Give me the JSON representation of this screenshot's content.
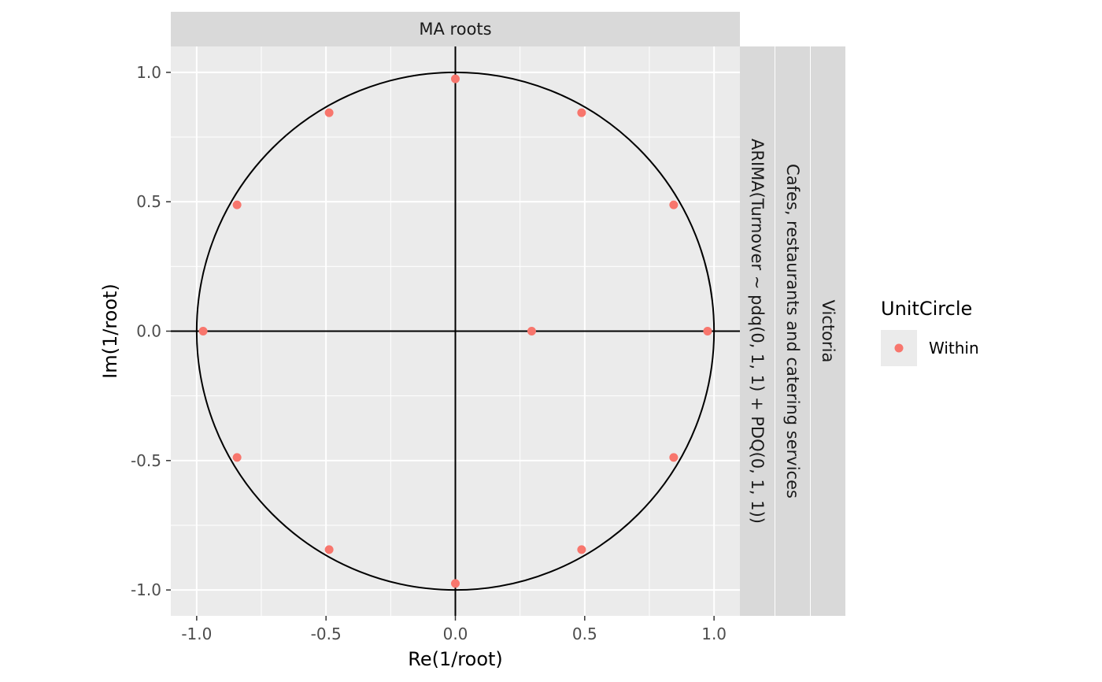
{
  "chart_data": {
    "type": "scatter",
    "facet_title": "MA roots",
    "row_strips": [
      "ARIMA(Turnover ~ pdq(0, 1, 1) + PDQ(0, 1, 1))",
      "Cafes, restaurants and catering services",
      "Victoria"
    ],
    "xlabel": "Re(1/root)",
    "ylabel": "Im(1/root)",
    "xlim": [
      -1.1,
      1.1
    ],
    "ylim": [
      -1.1,
      1.1
    ],
    "x_ticks": [
      -1.0,
      -0.5,
      0.0,
      0.5,
      1.0
    ],
    "x_tick_labels": [
      "-1.0",
      "-0.5",
      "0.0",
      "0.5",
      "1.0"
    ],
    "y_ticks": [
      1.0,
      0.5,
      0.0,
      -0.5,
      -1.0
    ],
    "y_tick_labels": [
      "1.0",
      "0.5",
      "0.0",
      "-0.5",
      "-1.0"
    ],
    "unit_circle": true,
    "grid": true,
    "legend": {
      "title": "UnitCircle",
      "position": "right",
      "entries": [
        {
          "label": "Within",
          "color": "#f8766d"
        }
      ]
    },
    "series": [
      {
        "name": "Within",
        "color": "#f8766d",
        "points": [
          {
            "x": 0.975,
            "y": 0.0
          },
          {
            "x": 0.844,
            "y": 0.488
          },
          {
            "x": 0.488,
            "y": 0.844
          },
          {
            "x": 0.0,
            "y": 0.975
          },
          {
            "x": -0.488,
            "y": 0.844
          },
          {
            "x": -0.844,
            "y": 0.488
          },
          {
            "x": -0.975,
            "y": 0.0
          },
          {
            "x": -0.844,
            "y": -0.488
          },
          {
            "x": -0.488,
            "y": -0.844
          },
          {
            "x": 0.0,
            "y": -0.975
          },
          {
            "x": 0.488,
            "y": -0.844
          },
          {
            "x": 0.844,
            "y": -0.488
          },
          {
            "x": 0.295,
            "y": 0.0
          }
        ]
      }
    ]
  },
  "colors": {
    "panel_bg": "#ebebeb",
    "grid_major": "#ffffff",
    "strip_bg": "#d9d9d9",
    "axis_line": "#000000",
    "point": "#f8766d"
  }
}
